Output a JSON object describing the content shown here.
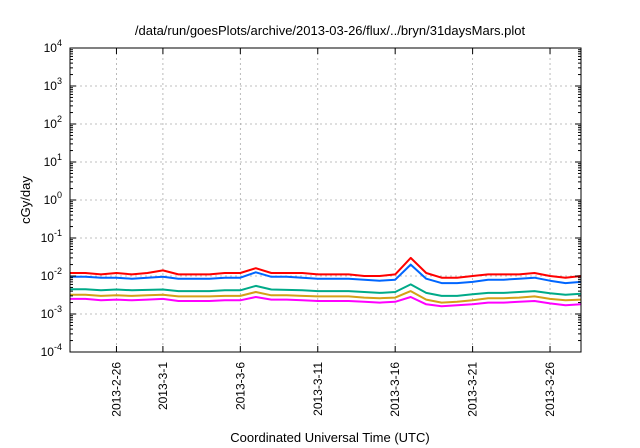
{
  "chart_data": {
    "type": "line",
    "title": "/data/run/goesPlots/archive/2013-03-26/flux/../bryn/31daysMars.plot",
    "xlabel": "Coordinated Universal Time (UTC)",
    "ylabel": "cGy/day",
    "y_scale": "log",
    "ylim": [
      0.0001,
      10000
    ],
    "xlim": [
      "2013-02-23",
      "2013-03-28"
    ],
    "grid": true,
    "y_ticks": [
      {
        "value": 0.0001,
        "base": "10",
        "exp": "-4"
      },
      {
        "value": 0.001,
        "base": "10",
        "exp": "-3"
      },
      {
        "value": 0.01,
        "base": "10",
        "exp": "-2"
      },
      {
        "value": 0.1,
        "base": "10",
        "exp": "-1"
      },
      {
        "value": 1,
        "base": "10",
        "exp": "0"
      },
      {
        "value": 10,
        "base": "10",
        "exp": "1"
      },
      {
        "value": 100,
        "base": "10",
        "exp": "2"
      },
      {
        "value": 1000,
        "base": "10",
        "exp": "3"
      },
      {
        "value": 10000,
        "base": "10",
        "exp": "4"
      }
    ],
    "x_ticks": [
      {
        "date": "2013-02-26",
        "label": "2013-2-26"
      },
      {
        "date": "2013-03-01",
        "label": "2013-3-1"
      },
      {
        "date": "2013-03-06",
        "label": "2013-3-6"
      },
      {
        "date": "2013-03-11",
        "label": "2013-3-11"
      },
      {
        "date": "2013-03-16",
        "label": "2013-3-16"
      },
      {
        "date": "2013-03-21",
        "label": "2013-3-21"
      },
      {
        "date": "2013-03-26",
        "label": "2013-3-26"
      }
    ],
    "x": [
      "2013-02-23",
      "2013-02-24",
      "2013-02-25",
      "2013-02-26",
      "2013-02-27",
      "2013-02-28",
      "2013-03-01",
      "2013-03-02",
      "2013-03-03",
      "2013-03-04",
      "2013-03-05",
      "2013-03-06",
      "2013-03-07",
      "2013-03-08",
      "2013-03-09",
      "2013-03-10",
      "2013-03-11",
      "2013-03-12",
      "2013-03-13",
      "2013-03-14",
      "2013-03-15",
      "2013-03-16",
      "2013-03-17",
      "2013-03-18",
      "2013-03-19",
      "2013-03-20",
      "2013-03-21",
      "2013-03-22",
      "2013-03-23",
      "2013-03-24",
      "2013-03-25",
      "2013-03-26",
      "2013-03-27",
      "2013-03-28"
    ],
    "series": [
      {
        "color": "#ff0000",
        "values": [
          0.012,
          0.012,
          0.011,
          0.012,
          0.011,
          0.012,
          0.014,
          0.011,
          0.011,
          0.011,
          0.012,
          0.012,
          0.016,
          0.012,
          0.012,
          0.012,
          0.011,
          0.011,
          0.011,
          0.01,
          0.01,
          0.011,
          0.03,
          0.012,
          0.009,
          0.009,
          0.01,
          0.011,
          0.011,
          0.011,
          0.012,
          0.01,
          0.009,
          0.01
        ]
      },
      {
        "color": "#0066ff",
        "values": [
          0.0095,
          0.0095,
          0.009,
          0.009,
          0.0085,
          0.009,
          0.0095,
          0.0085,
          0.0085,
          0.0085,
          0.009,
          0.009,
          0.0125,
          0.0095,
          0.0095,
          0.009,
          0.0085,
          0.0085,
          0.0085,
          0.008,
          0.0075,
          0.008,
          0.02,
          0.0085,
          0.0065,
          0.0065,
          0.007,
          0.008,
          0.008,
          0.0085,
          0.009,
          0.0075,
          0.0065,
          0.007
        ]
      },
      {
        "color": "#00aa88",
        "values": [
          0.0045,
          0.0045,
          0.0042,
          0.0044,
          0.0042,
          0.0043,
          0.0044,
          0.004,
          0.004,
          0.004,
          0.0042,
          0.0042,
          0.0055,
          0.0044,
          0.0043,
          0.0042,
          0.004,
          0.004,
          0.004,
          0.0038,
          0.0036,
          0.0038,
          0.006,
          0.0036,
          0.003,
          0.003,
          0.0033,
          0.0036,
          0.0036,
          0.0038,
          0.004,
          0.0035,
          0.0032,
          0.0034
        ]
      },
      {
        "color": "#d4a017",
        "values": [
          0.0032,
          0.0032,
          0.003,
          0.0031,
          0.003,
          0.0031,
          0.0032,
          0.0029,
          0.0029,
          0.0029,
          0.003,
          0.003,
          0.0038,
          0.0031,
          0.0031,
          0.003,
          0.0029,
          0.0029,
          0.0029,
          0.0027,
          0.0026,
          0.0027,
          0.004,
          0.0024,
          0.002,
          0.0021,
          0.0023,
          0.0026,
          0.0026,
          0.0027,
          0.0029,
          0.0025,
          0.0023,
          0.0024
        ]
      },
      {
        "color": "#ff00ff",
        "values": [
          0.0025,
          0.0025,
          0.0023,
          0.0024,
          0.0023,
          0.0024,
          0.0025,
          0.0022,
          0.0022,
          0.0022,
          0.0023,
          0.0023,
          0.0028,
          0.0024,
          0.0024,
          0.0023,
          0.0022,
          0.0022,
          0.0022,
          0.0021,
          0.002,
          0.0021,
          0.0028,
          0.0018,
          0.0016,
          0.0017,
          0.0018,
          0.002,
          0.002,
          0.0021,
          0.0022,
          0.0019,
          0.0017,
          0.0018
        ]
      }
    ]
  }
}
